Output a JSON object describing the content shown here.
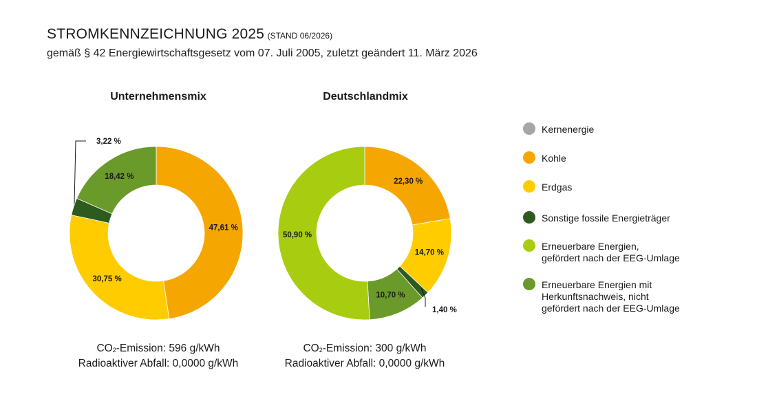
{
  "header": {
    "title": "STROMKENNZEICHNUNG 2025",
    "title_note": "(STAND 06/2026)",
    "subtitle": "gemäß § 42 Energiewirtschaftsgesetz vom  07. Juli 2005, zuletzt geändert 11. März 2026"
  },
  "legend": [
    {
      "key": "kern",
      "label": "Kernenergie",
      "color": "#a6a6a6"
    },
    {
      "key": "kohle",
      "label": "Kohle",
      "color": "#f5a600"
    },
    {
      "key": "erdgas",
      "label": "Erdgas",
      "color": "#ffcc00"
    },
    {
      "key": "sonstige",
      "label": "Sonstige fossile Energieträger",
      "color": "#2d5a1e"
    },
    {
      "key": "eeg",
      "label": "Erneuerbare Energien,\ngefördert nach der EEG-Umlage",
      "color": "#a8cc10"
    },
    {
      "key": "hkn",
      "label": "Erneuerbare Energien mit\nHerkunftsnachweis, nicht\ngefördert nach der EEG-Umlage",
      "color": "#6a9a2a"
    }
  ],
  "chart_data": [
    {
      "type": "pie",
      "title": "Unternehmensmix",
      "slices": [
        {
          "key": "kohle",
          "value": 47.61,
          "label": "47,61 %"
        },
        {
          "key": "erdgas",
          "value": 30.75,
          "label": "30,75 %"
        },
        {
          "key": "sonstige",
          "value": 3.22,
          "label": "3,22 %"
        },
        {
          "key": "hkn",
          "value": 18.42,
          "label": "18,42 %"
        }
      ],
      "emission_label": "Emission: 596 g/kWh",
      "waste": "Radioaktiver Abfall: 0,0000 g/kWh"
    },
    {
      "type": "pie",
      "title": "Deutschlandmix",
      "slices": [
        {
          "key": "kohle",
          "value": 22.3,
          "label": "22,30 %"
        },
        {
          "key": "erdgas",
          "value": 14.7,
          "label": "14,70 %"
        },
        {
          "key": "sonstige",
          "value": 1.4,
          "label": "1,40 %"
        },
        {
          "key": "hkn",
          "value": 10.7,
          "label": "10,70 %"
        },
        {
          "key": "eeg",
          "value": 50.9,
          "label": "50,90 %"
        }
      ],
      "emission_label": "Emission: 300 g/kWh",
      "waste": "Radioaktiver Abfall: 0,0000 g/kWh"
    }
  ],
  "co2": {
    "prefix": "CO",
    "sub": "2",
    "dash": "-"
  }
}
